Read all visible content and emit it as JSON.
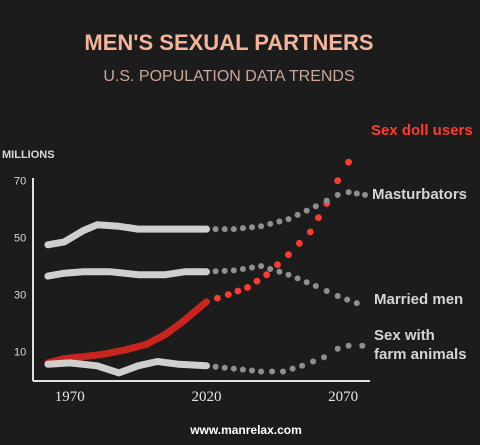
{
  "chart_data": {
    "type": "line",
    "title": "MEN'S SEXUAL PARTNERS",
    "subtitle": "U.S. POPULATION DATA TRENDS",
    "ylabel": "MILLIONS",
    "xlim": [
      1958,
      2078
    ],
    "ylim": [
      0,
      72
    ],
    "x_ticks": [
      1970,
      2020,
      2070
    ],
    "y_ticks": [
      10,
      30,
      50,
      70
    ],
    "historical_end": 2020,
    "credit": "www.manrelax.com",
    "colors": {
      "background": "#1c1c1d",
      "title": "#f5b49a",
      "subtitle": "#c9a79a",
      "gray_series": "#cfcfcf",
      "red_series": "#c8251f",
      "red_label": "#ff3b2f",
      "gray_label": "#d4d4d4"
    },
    "series": [
      {
        "name": "Sex doll users",
        "color": "red",
        "historical": [
          [
            1962,
            6
          ],
          [
            1968,
            7.5
          ],
          [
            1975,
            8.2
          ],
          [
            1982,
            9
          ],
          [
            1990,
            10.5
          ],
          [
            1998,
            12.5
          ],
          [
            2005,
            16
          ],
          [
            2012,
            21
          ],
          [
            2020,
            27.5
          ]
        ],
        "projection": [
          [
            2020,
            27.5
          ],
          [
            2028,
            30
          ],
          [
            2035,
            32.5
          ],
          [
            2042,
            37
          ],
          [
            2050,
            44
          ],
          [
            2058,
            52
          ],
          [
            2064,
            62
          ],
          [
            2068,
            70
          ],
          [
            2072,
            76.5
          ]
        ]
      },
      {
        "name": "Masturbators",
        "color": "gray",
        "historical": [
          [
            1962,
            47.5
          ],
          [
            1968,
            48.5
          ],
          [
            1975,
            52.5
          ],
          [
            1980,
            54.5
          ],
          [
            1988,
            54
          ],
          [
            1995,
            53
          ],
          [
            2005,
            53
          ],
          [
            2020,
            53
          ]
        ],
        "projection": [
          [
            2020,
            53
          ],
          [
            2030,
            53
          ],
          [
            2040,
            54
          ],
          [
            2050,
            56.5
          ],
          [
            2060,
            61
          ],
          [
            2068,
            65
          ],
          [
            2072,
            66
          ],
          [
            2078,
            65
          ]
        ]
      },
      {
        "name": "Married men",
        "color": "gray",
        "historical": [
          [
            1962,
            36.5
          ],
          [
            1968,
            37.5
          ],
          [
            1975,
            38
          ],
          [
            1985,
            38
          ],
          [
            1995,
            37
          ],
          [
            2005,
            37
          ],
          [
            2012,
            38
          ],
          [
            2020,
            38
          ]
        ],
        "projection": [
          [
            2020,
            38
          ],
          [
            2030,
            38.5
          ],
          [
            2040,
            40
          ],
          [
            2050,
            37
          ],
          [
            2060,
            33
          ],
          [
            2068,
            29.5
          ],
          [
            2075,
            27
          ]
        ]
      },
      {
        "name": "Sex with farm animals",
        "color": "gray",
        "historical": [
          [
            1962,
            5.5
          ],
          [
            1970,
            6
          ],
          [
            1980,
            5
          ],
          [
            1988,
            2.5
          ],
          [
            1995,
            5
          ],
          [
            2002,
            6.5
          ],
          [
            2010,
            5.5
          ],
          [
            2020,
            5
          ]
        ],
        "projection": [
          [
            2020,
            5
          ],
          [
            2030,
            4
          ],
          [
            2040,
            3
          ],
          [
            2048,
            3
          ],
          [
            2055,
            5
          ],
          [
            2063,
            8
          ],
          [
            2068,
            11
          ],
          [
            2072,
            12
          ],
          [
            2077,
            12
          ]
        ]
      }
    ],
    "labels": [
      {
        "text": "Sex doll users",
        "color": "red"
      },
      {
        "text": "Masturbators",
        "color": "gray"
      },
      {
        "text": "Married men",
        "color": "gray"
      },
      {
        "text": "Sex with",
        "color": "gray"
      },
      {
        "text": "farm animals",
        "color": "gray"
      }
    ]
  }
}
